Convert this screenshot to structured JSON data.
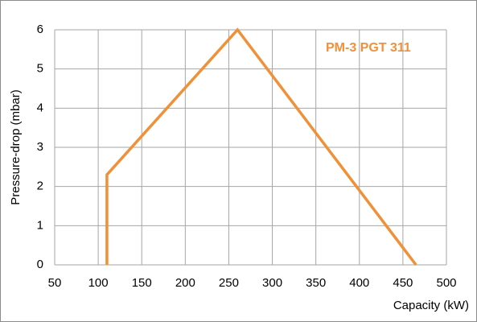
{
  "chart_data": {
    "type": "line",
    "x_label": "Capacity (kW)",
    "y_label": "Pressure-drop (mbar)",
    "x": [
      110,
      110,
      260,
      465
    ],
    "series": [
      {
        "name": "PM-3 PGT 311",
        "color": "#f0913a",
        "values": [
          0,
          2.3,
          6,
          0
        ]
      }
    ],
    "xlim": [
      50,
      500
    ],
    "xticks": [
      50,
      100,
      150,
      200,
      250,
      300,
      350,
      400,
      450,
      500
    ],
    "ylim": [
      0,
      6
    ],
    "yticks": [
      0,
      1,
      2,
      3,
      4,
      5,
      6
    ],
    "grid": true
  }
}
